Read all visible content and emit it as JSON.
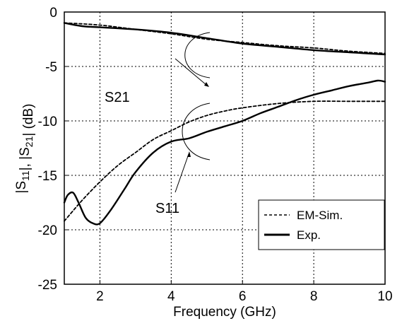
{
  "chart_data": {
    "type": "line",
    "xlabel": "Frequency (GHz)",
    "ylabel": "|S11|, |S21| (dB)",
    "xlim": [
      1,
      10
    ],
    "ylim": [
      -25,
      0
    ],
    "xticks": [
      2,
      4,
      6,
      8,
      10
    ],
    "yticks": [
      0,
      -5,
      -10,
      -15,
      -20,
      -25
    ],
    "grid": true,
    "legend": {
      "placement": "lower-right",
      "entries": [
        {
          "label": "EM-Sim.",
          "style": "dashed"
        },
        {
          "label": "Exp.",
          "style": "solid"
        }
      ]
    },
    "annotations": [
      {
        "text": "S21",
        "target": "S21 curves"
      },
      {
        "text": "S11",
        "target": "S11 curves"
      }
    ],
    "series": [
      {
        "name": "EM-Sim.",
        "curve": "S21",
        "style": "dashed",
        "x": [
          1.0,
          2.0,
          3.0,
          4.0,
          5.0,
          6.0,
          7.0,
          8.0,
          9.0,
          10.0
        ],
        "y": [
          -1.0,
          -1.2,
          -1.6,
          -2.0,
          -2.5,
          -2.8,
          -3.1,
          -3.3,
          -3.6,
          -3.8
        ]
      },
      {
        "name": "Exp.",
        "curve": "S21",
        "style": "solid",
        "x": [
          1.0,
          1.5,
          2.0,
          3.0,
          4.0,
          5.0,
          6.0,
          7.0,
          8.0,
          9.0,
          10.0
        ],
        "y": [
          -1.0,
          -1.3,
          -1.4,
          -1.6,
          -1.9,
          -2.4,
          -2.9,
          -3.2,
          -3.5,
          -3.7,
          -3.9
        ]
      },
      {
        "name": "EM-Sim.",
        "curve": "S11",
        "style": "dashed",
        "x": [
          1.0,
          1.5,
          2.0,
          2.5,
          3.0,
          3.5,
          4.0,
          4.5,
          5.0,
          5.5,
          6.0,
          7.0,
          8.0,
          9.0,
          10.0
        ],
        "y": [
          -19.2,
          -17.3,
          -15.6,
          -14.1,
          -12.9,
          -11.7,
          -10.9,
          -10.1,
          -9.5,
          -9.1,
          -8.8,
          -8.4,
          -8.2,
          -8.2,
          -8.2
        ]
      },
      {
        "name": "Exp.",
        "curve": "S11",
        "style": "solid",
        "x": [
          1.0,
          1.1,
          1.25,
          1.4,
          1.6,
          1.8,
          2.0,
          2.3,
          2.7,
          3.0,
          3.5,
          4.0,
          4.5,
          5.0,
          5.5,
          6.0,
          6.5,
          7.0,
          7.5,
          8.0,
          8.5,
          9.0,
          9.5,
          9.8,
          10.0
        ],
        "y": [
          -17.5,
          -16.8,
          -16.6,
          -17.5,
          -18.9,
          -19.4,
          -19.4,
          -18.2,
          -16.2,
          -14.7,
          -12.9,
          -11.9,
          -11.6,
          -11.0,
          -10.5,
          -10.0,
          -9.3,
          -8.7,
          -8.1,
          -7.6,
          -7.2,
          -6.8,
          -6.5,
          -6.3,
          -6.4
        ]
      }
    ]
  }
}
